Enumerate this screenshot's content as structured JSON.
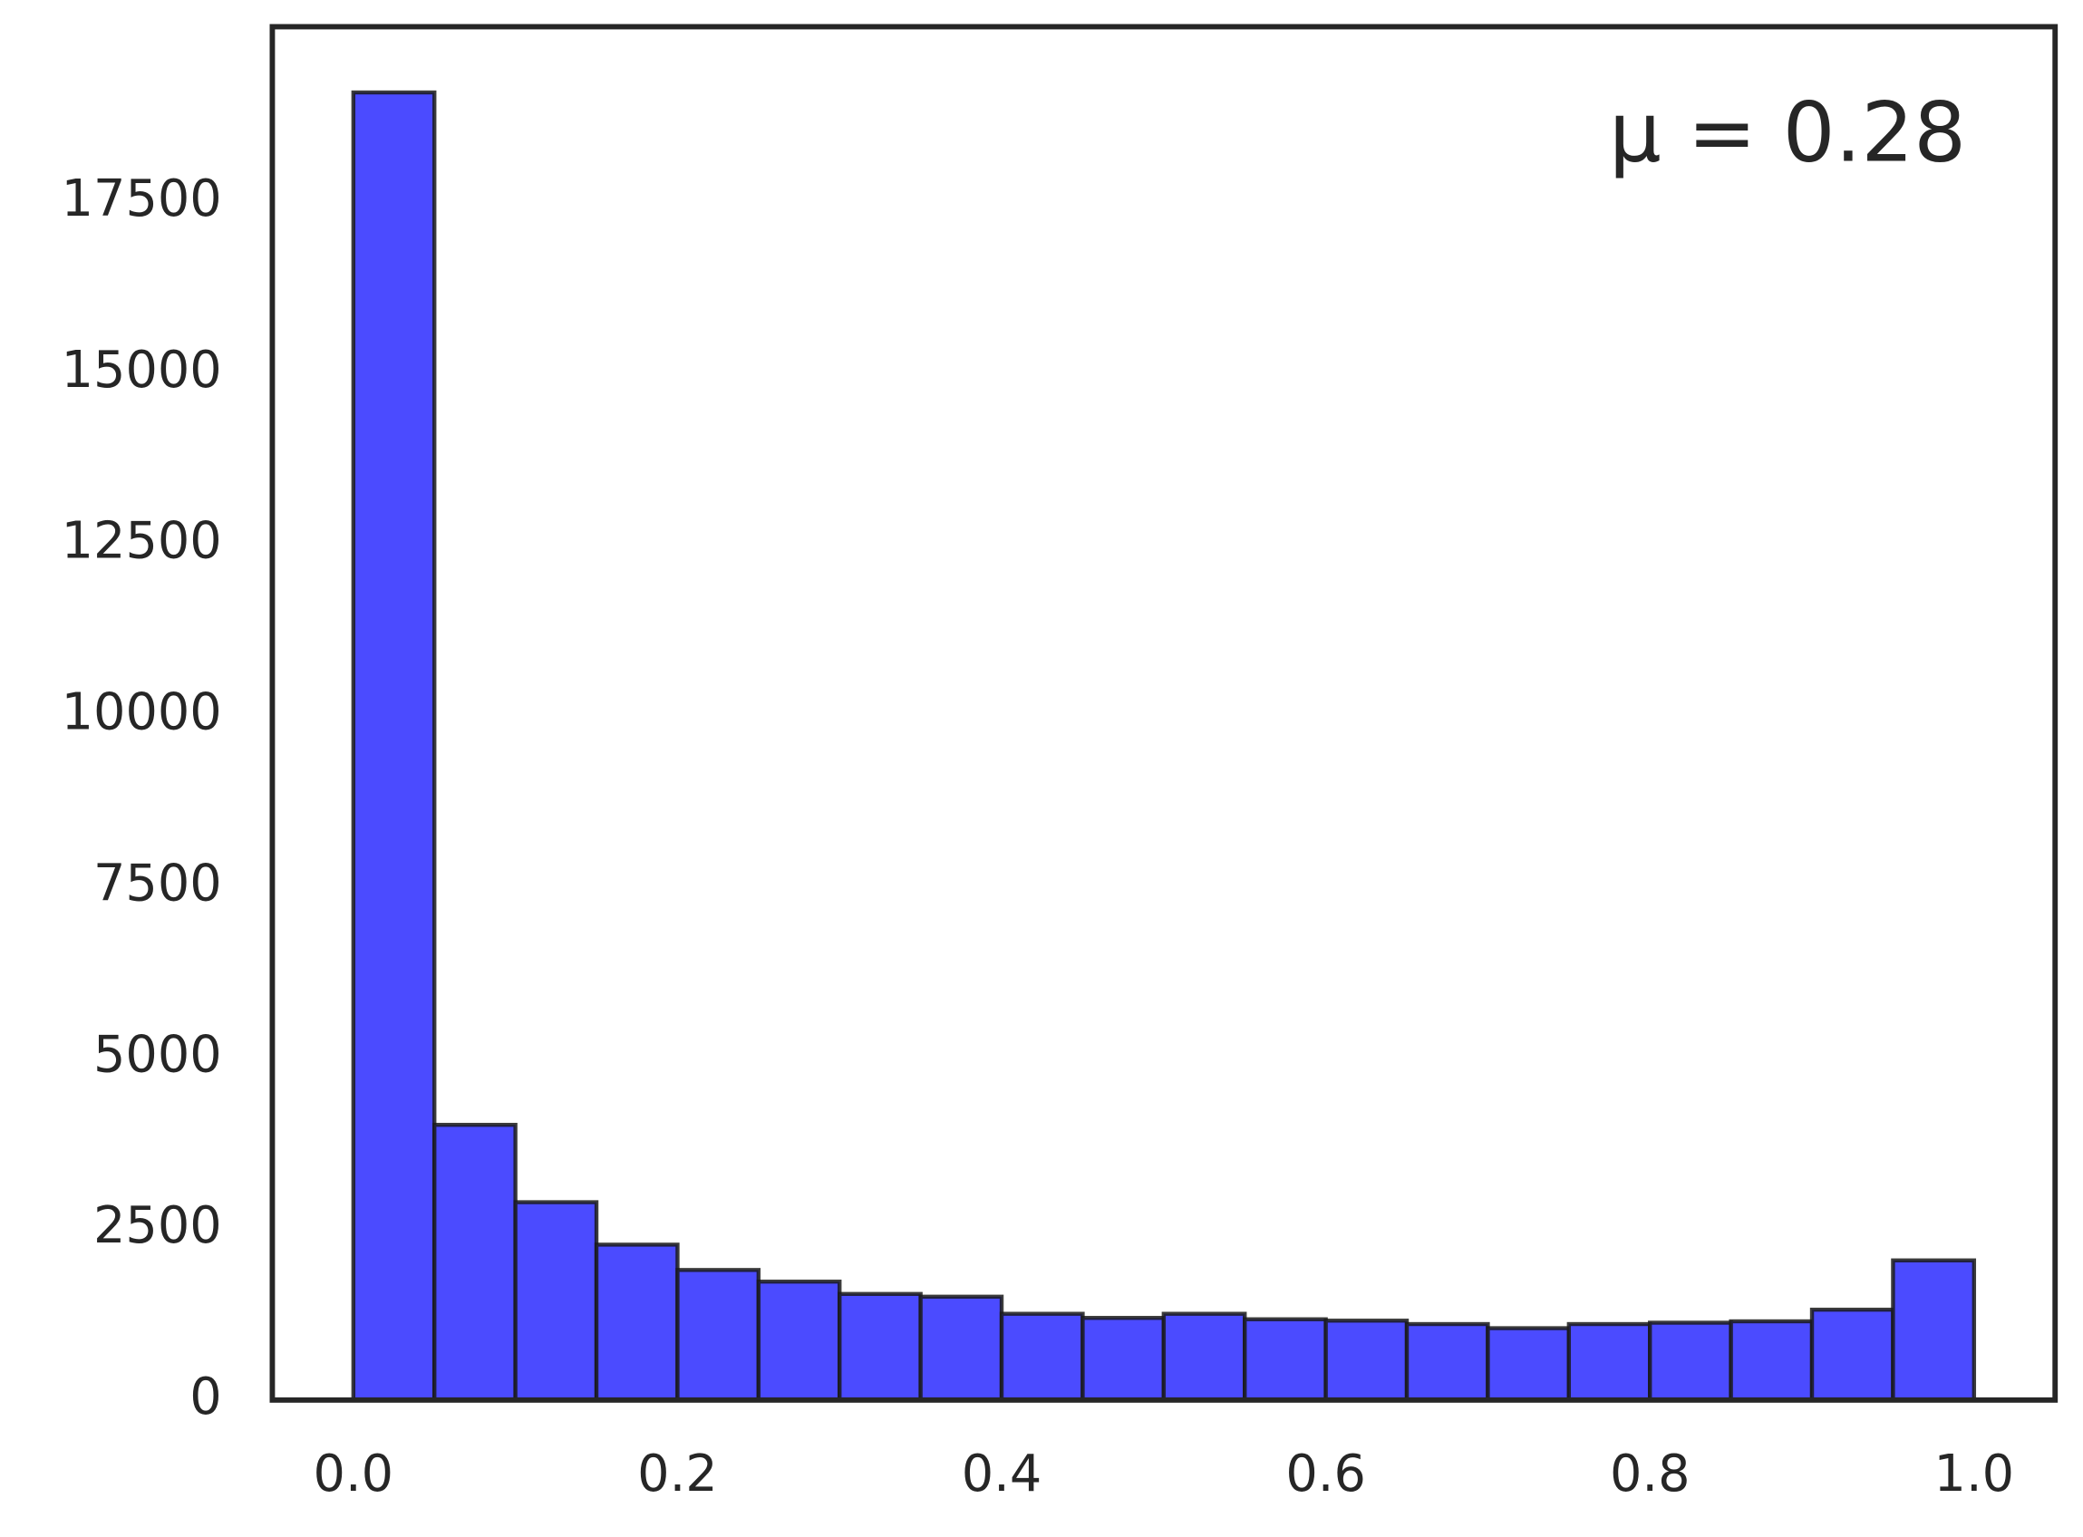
{
  "chart_data": {
    "type": "histogram",
    "bins": [
      0,
      0.05,
      0.1,
      0.15,
      0.2,
      0.25,
      0.3,
      0.35,
      0.4,
      0.45,
      0.5,
      0.55,
      0.6,
      0.65,
      0.7,
      0.75,
      0.8,
      0.85,
      0.9,
      0.95,
      1
    ],
    "values": [
      19100,
      4020,
      2890,
      2270,
      1900,
      1730,
      1550,
      1510,
      1260,
      1200,
      1260,
      1180,
      1160,
      1110,
      1050,
      1110,
      1130,
      1150,
      1320,
      2040
    ],
    "color": "#4b4bff",
    "annotation": "μ = 0.28",
    "xlim": [
      -0.05,
      1.05
    ],
    "xticks": [
      {
        "value": 0,
        "label": "0.0"
      },
      0.2,
      0.4,
      0.6,
      0.8,
      {
        "value": 1,
        "label": "1.0"
      }
    ],
    "ylim": [
      0,
      20060
    ],
    "yticks": [
      0,
      2500,
      5000,
      7500,
      10000,
      12500,
      15000,
      17500
    ],
    "grid": false
  }
}
